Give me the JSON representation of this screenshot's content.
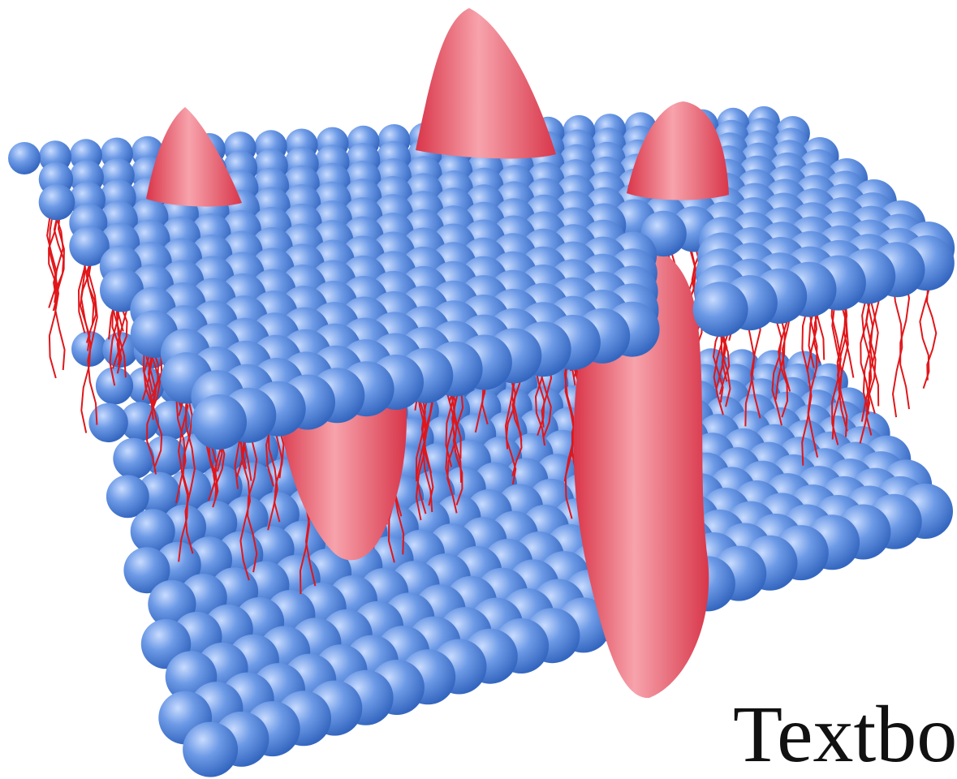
{
  "image_text": {
    "corner_label": "Textbo"
  },
  "colors": {
    "background": "#ffffff",
    "phospholipid_head": "#4f86d9",
    "phospholipid_head_highlight": "#c9dcff",
    "fatty_acid_tail": "#e0161a",
    "membrane_protein": "#ea4f5f",
    "membrane_protein_highlight": "#f7a3ac",
    "corner_text": "#111111"
  },
  "components": [
    {
      "name": "phospholipid-bilayer",
      "icon": "lipid-bilayer-icon"
    },
    {
      "name": "phospholipid-head",
      "icon": "sphere-icon"
    },
    {
      "name": "fatty-acid-tail",
      "icon": "wavy-line-icon"
    },
    {
      "name": "membrane-protein",
      "icon": "protein-blob-icon"
    }
  ]
}
